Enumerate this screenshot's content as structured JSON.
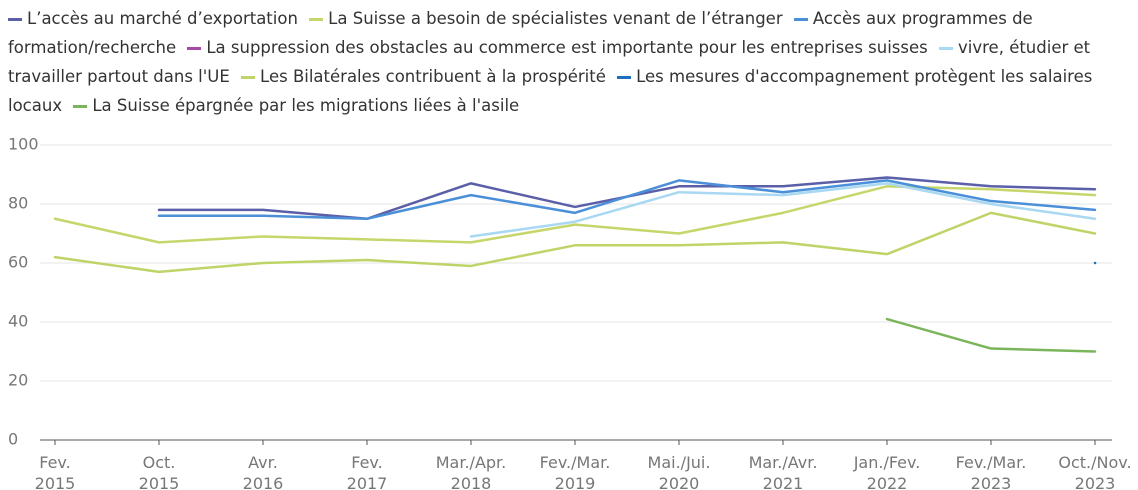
{
  "chart_data": {
    "type": "line",
    "categories": [
      "Fev. 2015",
      "Oct. 2015",
      "Avr. 2016",
      "Fev. 2017",
      "Mar./Apr. 2018",
      "Fev./Mar. 2019",
      "Mai./Jui. 2020",
      "Mar./Avr. 2021",
      "Jan./Fev. 2022",
      "Fev./Mar. 2023",
      "Oct./Nov. 2023"
    ],
    "series": [
      {
        "name": "L’accès au marché d’exportation",
        "color": "#5a5fa8",
        "values": [
          null,
          78,
          78,
          75,
          87,
          79,
          86,
          86,
          89,
          86,
          85
        ]
      },
      {
        "name": "La Suisse a besoin de spécialistes venant de l’étranger",
        "color": "#c6d66a",
        "values": [
          75,
          67,
          69,
          68,
          67,
          73,
          70,
          77,
          86,
          85,
          83
        ]
      },
      {
        "name": "Accès aux programmes de formation/recherche",
        "color": "#4a8fd8",
        "values": [
          null,
          76,
          76,
          75,
          83,
          77,
          88,
          84,
          88,
          81,
          78
        ]
      },
      {
        "name": "La suppression des obstacles au commerce est importante pour les entreprises suisses",
        "color": "#a54aa8",
        "values": [
          null,
          null,
          null,
          null,
          null,
          null,
          null,
          null,
          null,
          null,
          null
        ]
      },
      {
        "name": "vivre, étudier et travailler partout dans l'UE",
        "color": "#a9d8f2",
        "values": [
          null,
          null,
          null,
          null,
          69,
          74,
          84,
          83,
          87,
          80,
          75
        ]
      },
      {
        "name": "Les Bilatérales contribuent à la prospérité",
        "color": "#bfd468",
        "values": [
          62,
          57,
          60,
          61,
          59,
          66,
          66,
          67,
          63,
          77,
          70
        ]
      },
      {
        "name": "Les mesures d'accompagnement protègent les salaires locaux",
        "color": "#1f6fc0",
        "values": [
          null,
          null,
          null,
          null,
          null,
          null,
          null,
          null,
          null,
          null,
          60
        ]
      },
      {
        "name": "La Suisse épargnée par les migrations liées à l'asile",
        "color": "#7bb559",
        "values": [
          null,
          null,
          null,
          null,
          null,
          null,
          null,
          null,
          41,
          31,
          30
        ]
      }
    ],
    "ylim": [
      0,
      100
    ],
    "yticks": [
      0,
      20,
      40,
      60,
      80,
      100
    ],
    "grid": true
  }
}
